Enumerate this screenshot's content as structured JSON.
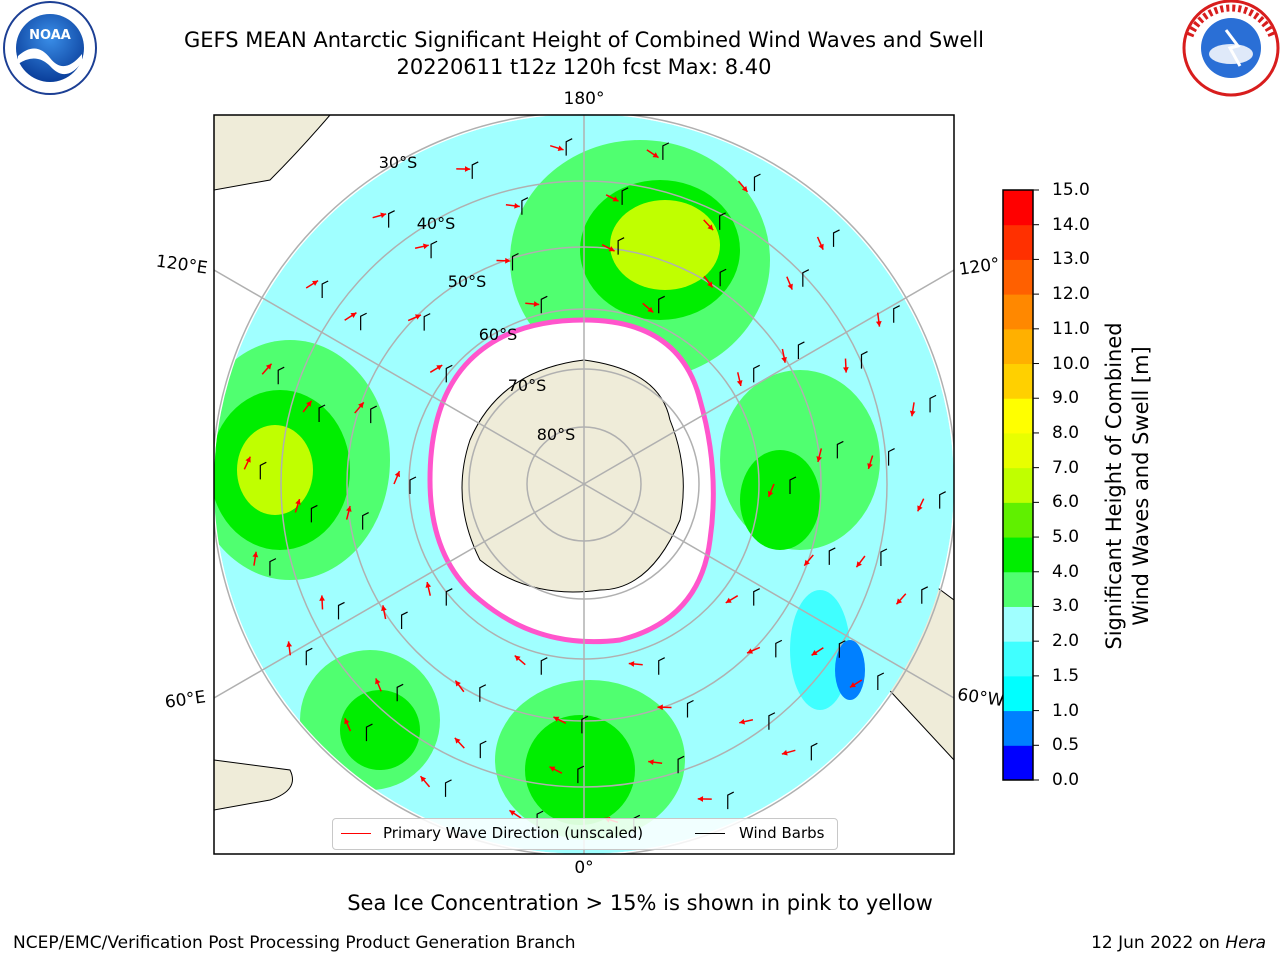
{
  "title": {
    "line1": "GEFS MEAN Antarctic Significant Height of Combined Wind Waves and Swell",
    "line2": "20220611 t12z 120h fcst   Max: 8.40"
  },
  "logos": {
    "left": {
      "name": "NOAA",
      "text": "NOAA"
    },
    "right": {
      "name": "National Weather Service",
      "text": "NATIONAL WEATHER SERVICE"
    }
  },
  "map": {
    "projection": "south-polar-stereographic",
    "longitude_labels": [
      "180°",
      "120°E",
      "120°",
      "60°E",
      "60°W",
      "0°"
    ],
    "latitude_labels": [
      "30°S",
      "40°S",
      "50°S",
      "60°S",
      "70°S",
      "80°S"
    ],
    "colors": {
      "land": "#efecd9",
      "ice": "#ffffff",
      "ice_edge": "#ff55cc",
      "grid": "#b0b0b0"
    },
    "legend": {
      "items": [
        {
          "label": "Primary Wave Direction (unscaled)",
          "color": "#ff0000"
        },
        {
          "label": "Wind Barbs",
          "color": "#000000"
        }
      ]
    }
  },
  "colorbar": {
    "label": "Significant Height of Combined Wind Waves and Swell [m]",
    "label_line1": "Significant Height of Combined",
    "label_line2": "Wind Waves and Swell [m]",
    "ticks": [
      "15.0",
      "14.0",
      "13.0",
      "12.0",
      "11.0",
      "10.0",
      "9.0",
      "8.0",
      "7.0",
      "6.0",
      "5.0",
      "4.0",
      "3.0",
      "2.0",
      "1.5",
      "1.0",
      "0.5",
      "0.0"
    ],
    "colors": [
      "#0000ff",
      "#0080ff",
      "#00ffff",
      "#40ffff",
      "#a0ffff",
      "#50ff70",
      "#00ee00",
      "#60f000",
      "#c0ff00",
      "#e8ff00",
      "#ffff00",
      "#ffd000",
      "#ffb000",
      "#ff8800",
      "#ff6000",
      "#ff3000",
      "#ff0000"
    ]
  },
  "footer": {
    "note": "Sea Ice Concentration > 15% is shown in pink to yellow",
    "left": "NCEP/EMC/Verification Post Processing Product Generation Branch",
    "right_date": "12 Jun 2022 on ",
    "right_machine": "Hera"
  }
}
